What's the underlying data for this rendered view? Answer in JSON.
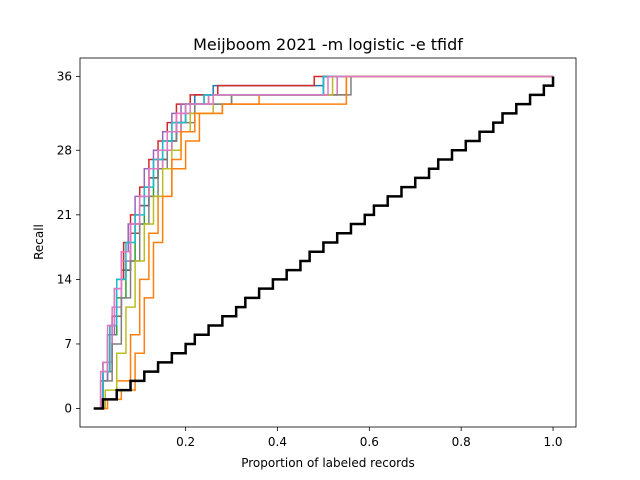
{
  "chart_data": {
    "type": "line",
    "title": "Meijboom 2021 -m logistic -e tfidf",
    "xlabel": "Proportion of labeled records",
    "ylabel": "Recall",
    "xlim": [
      -0.03,
      1.05
    ],
    "ylim": [
      -2,
      38
    ],
    "x_ticks": [
      0.2,
      0.4,
      0.6,
      0.8,
      1.0
    ],
    "x_tick_labels": [
      "0.2",
      "0.4",
      "0.6",
      "0.8",
      "1.0"
    ],
    "y_ticks": [
      0,
      7,
      14,
      21,
      28,
      36
    ],
    "y_tick_labels": [
      "0",
      "7",
      "14",
      "21",
      "28",
      "36"
    ],
    "grid": false,
    "step": true,
    "series": [
      {
        "color": "#1f77b4",
        "x": [
          0,
          0.02,
          0.04,
          0.06,
          0.08,
          0.1,
          0.12,
          0.14,
          0.16,
          0.18,
          0.2,
          0.22,
          0.26,
          0.5,
          1.0
        ],
        "y": [
          0,
          5,
          10,
          15,
          19,
          22,
          25,
          27,
          29,
          31,
          33,
          34,
          35,
          36,
          36
        ]
      },
      {
        "color": "#ff7f0e",
        "x": [
          0,
          0.02,
          0.05,
          0.08,
          0.1,
          0.12,
          0.14,
          0.17,
          0.2,
          0.23,
          0.28,
          0.36,
          0.55,
          1.0
        ],
        "y": [
          0,
          1,
          3,
          8,
          14,
          19,
          23,
          26,
          29,
          32,
          33,
          34,
          36,
          36
        ]
      },
      {
        "color": "#2ca02c",
        "x": [
          0,
          0.015,
          0.03,
          0.05,
          0.07,
          0.09,
          0.11,
          0.13,
          0.15,
          0.17,
          0.19,
          0.22,
          0.3,
          0.53,
          1.0
        ],
        "y": [
          0,
          3,
          8,
          12,
          16,
          20,
          23,
          26,
          28,
          30,
          32,
          33,
          34,
          36,
          36
        ]
      },
      {
        "color": "#d62728",
        "x": [
          0,
          0.02,
          0.035,
          0.05,
          0.065,
          0.08,
          0.1,
          0.12,
          0.14,
          0.16,
          0.18,
          0.21,
          0.27,
          0.48,
          1.0
        ],
        "y": [
          0,
          4,
          9,
          14,
          18,
          21,
          24,
          27,
          29,
          31,
          33,
          34,
          35,
          36,
          36
        ]
      },
      {
        "color": "#9467bd",
        "x": [
          0,
          0.015,
          0.03,
          0.045,
          0.06,
          0.075,
          0.09,
          0.11,
          0.13,
          0.15,
          0.17,
          0.19,
          0.24,
          0.5,
          1.0
        ],
        "y": [
          0,
          3,
          8,
          13,
          17,
          20,
          23,
          26,
          28,
          30,
          32,
          33,
          34,
          36,
          36
        ]
      },
      {
        "color": "#8c564b",
        "x": [
          0,
          0.02,
          0.04,
          0.06,
          0.08,
          0.1,
          0.12,
          0.14,
          0.16,
          0.18,
          0.2,
          0.25,
          0.5,
          1.0
        ],
        "y": [
          0,
          4,
          10,
          15,
          19,
          22,
          25,
          27,
          29,
          31,
          33,
          34,
          36,
          36
        ]
      },
      {
        "color": "#e377c2",
        "x": [
          0,
          0.02,
          0.04,
          0.06,
          0.08,
          0.1,
          0.12,
          0.15,
          0.17,
          0.19,
          0.21,
          0.25,
          0.53,
          1.0
        ],
        "y": [
          0,
          5,
          11,
          16,
          20,
          23,
          26,
          28,
          30,
          32,
          33,
          34,
          36,
          36
        ]
      },
      {
        "color": "#7f7f7f",
        "x": [
          0,
          0.02,
          0.04,
          0.06,
          0.08,
          0.1,
          0.12,
          0.14,
          0.16,
          0.18,
          0.22,
          0.3,
          0.56,
          1.0
        ],
        "y": [
          0,
          3,
          7,
          12,
          16,
          20,
          23,
          26,
          29,
          31,
          33,
          34,
          36,
          36
        ]
      },
      {
        "color": "#bcbd22",
        "x": [
          0,
          0.025,
          0.05,
          0.07,
          0.09,
          0.11,
          0.13,
          0.15,
          0.17,
          0.19,
          0.21,
          0.26,
          0.52,
          1.0
        ],
        "y": [
          0,
          2,
          6,
          11,
          16,
          20,
          23,
          26,
          28,
          30,
          32,
          34,
          36,
          36
        ]
      },
      {
        "color": "#17becf",
        "x": [
          0,
          0.02,
          0.035,
          0.05,
          0.07,
          0.09,
          0.11,
          0.13,
          0.15,
          0.17,
          0.2,
          0.24,
          0.5,
          1.0
        ],
        "y": [
          0,
          4,
          9,
          14,
          18,
          21,
          24,
          27,
          29,
          31,
          33,
          34,
          36,
          36
        ]
      },
      {
        "color": "#ff7f0e",
        "x": [
          0,
          0.03,
          0.06,
          0.09,
          0.11,
          0.13,
          0.15,
          0.17,
          0.19,
          0.22,
          0.28,
          0.55,
          1.0
        ],
        "y": [
          0,
          1,
          2,
          6,
          12,
          18,
          23,
          27,
          30,
          32,
          33,
          36,
          36
        ]
      },
      {
        "color": "#e377c2",
        "x": [
          0,
          0.015,
          0.03,
          0.045,
          0.06,
          0.08,
          0.1,
          0.12,
          0.14,
          0.16,
          0.18,
          0.2,
          0.26,
          0.51,
          1.0
        ],
        "y": [
          0,
          4,
          9,
          13,
          17,
          20,
          23,
          26,
          28,
          30,
          32,
          33,
          34,
          36,
          36
        ]
      },
      {
        "color": "#000000",
        "width": 2.5,
        "x": [
          0,
          0.02,
          0.05,
          0.08,
          0.11,
          0.14,
          0.17,
          0.2,
          0.22,
          0.25,
          0.28,
          0.31,
          0.33,
          0.36,
          0.39,
          0.42,
          0.45,
          0.47,
          0.5,
          0.53,
          0.56,
          0.59,
          0.61,
          0.64,
          0.67,
          0.7,
          0.73,
          0.75,
          0.78,
          0.81,
          0.84,
          0.87,
          0.89,
          0.92,
          0.95,
          0.98,
          1.0
        ],
        "y": [
          0,
          1,
          2,
          3,
          4,
          5,
          6,
          7,
          8,
          9,
          10,
          11,
          12,
          13,
          14,
          15,
          16,
          17,
          18,
          19,
          20,
          21,
          22,
          23,
          24,
          25,
          26,
          27,
          28,
          29,
          30,
          31,
          32,
          33,
          34,
          35,
          36
        ]
      }
    ]
  }
}
